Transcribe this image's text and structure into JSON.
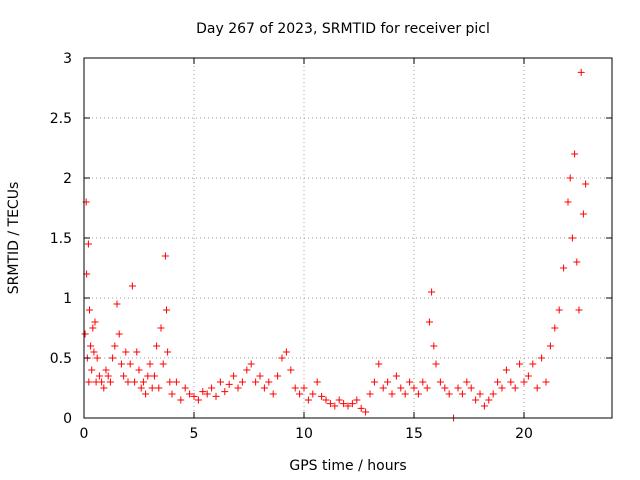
{
  "chart_data": {
    "type": "scatter",
    "title": "Day 267 of 2023, SRMTID for receiver picl",
    "xlabel": "GPS time / hours",
    "ylabel": "SRMTID / TECUs",
    "xlim": [
      0,
      24
    ],
    "ylim": [
      0,
      3
    ],
    "xticks": [
      0,
      5,
      10,
      15,
      20
    ],
    "yticks": [
      0,
      0.5,
      1,
      1.5,
      2,
      2.5,
      3
    ],
    "xtick_labels": [
      "0",
      "5",
      "10",
      "15",
      "20"
    ],
    "ytick_labels": [
      "0",
      "0.5",
      "1",
      "1.5",
      "2",
      "2.5",
      "3"
    ],
    "grid": true,
    "marker": "+",
    "color": "#ff0000",
    "series": [
      {
        "name": "SRMTID",
        "x": [
          0.05,
          0.1,
          0.12,
          0.15,
          0.2,
          0.22,
          0.25,
          0.3,
          0.35,
          0.4,
          0.45,
          0.5,
          0.55,
          0.6,
          0.7,
          0.8,
          0.9,
          1.0,
          1.1,
          1.2,
          1.3,
          1.4,
          1.5,
          1.6,
          1.7,
          1.8,
          1.9,
          2.0,
          2.1,
          2.2,
          2.3,
          2.4,
          2.5,
          2.6,
          2.7,
          2.8,
          2.9,
          3.0,
          3.1,
          3.2,
          3.3,
          3.4,
          3.5,
          3.6,
          3.7,
          3.75,
          3.8,
          3.9,
          4.0,
          4.2,
          4.4,
          4.6,
          4.8,
          5.0,
          5.2,
          5.4,
          5.6,
          5.8,
          6.0,
          6.2,
          6.4,
          6.6,
          6.8,
          7.0,
          7.2,
          7.4,
          7.6,
          7.8,
          8.0,
          8.2,
          8.4,
          8.6,
          8.8,
          9.0,
          9.2,
          9.4,
          9.6,
          9.8,
          10.0,
          10.2,
          10.4,
          10.6,
          10.8,
          11.0,
          11.2,
          11.4,
          11.6,
          11.8,
          12.0,
          12.2,
          12.4,
          12.6,
          12.8,
          13.0,
          13.2,
          13.4,
          13.6,
          13.8,
          14.0,
          14.2,
          14.4,
          14.6,
          14.8,
          15.0,
          15.2,
          15.4,
          15.6,
          15.7,
          15.8,
          15.9,
          16.0,
          16.2,
          16.4,
          16.6,
          16.8,
          17.0,
          17.2,
          17.4,
          17.6,
          17.8,
          18.0,
          18.2,
          18.4,
          18.6,
          18.8,
          19.0,
          19.2,
          19.4,
          19.6,
          19.8,
          20.0,
          20.2,
          20.4,
          20.6,
          20.8,
          21.0,
          21.2,
          21.4,
          21.6,
          21.8,
          22.0,
          22.1,
          22.2,
          22.3,
          22.4,
          22.5,
          22.6,
          22.7,
          22.8
        ],
        "y": [
          0.7,
          1.8,
          1.2,
          0.5,
          1.45,
          0.3,
          0.9,
          0.6,
          0.4,
          0.75,
          0.55,
          0.8,
          0.3,
          0.5,
          0.35,
          0.3,
          0.25,
          0.4,
          0.35,
          0.3,
          0.5,
          0.6,
          0.95,
          0.7,
          0.45,
          0.35,
          0.55,
          0.3,
          0.45,
          1.1,
          0.3,
          0.55,
          0.4,
          0.25,
          0.3,
          0.2,
          0.35,
          0.45,
          0.25,
          0.35,
          0.6,
          0.25,
          0.75,
          0.45,
          1.35,
          0.9,
          0.55,
          0.3,
          0.2,
          0.3,
          0.15,
          0.25,
          0.2,
          0.18,
          0.15,
          0.22,
          0.2,
          0.25,
          0.18,
          0.3,
          0.22,
          0.28,
          0.35,
          0.25,
          0.3,
          0.4,
          0.45,
          0.3,
          0.35,
          0.25,
          0.3,
          0.2,
          0.35,
          0.5,
          0.55,
          0.4,
          0.25,
          0.2,
          0.25,
          0.15,
          0.2,
          0.3,
          0.18,
          0.15,
          0.12,
          0.1,
          0.15,
          0.12,
          0.1,
          0.12,
          0.15,
          0.08,
          0.05,
          0.2,
          0.3,
          0.45,
          0.25,
          0.3,
          0.2,
          0.35,
          0.25,
          0.2,
          0.3,
          0.25,
          0.2,
          0.3,
          0.25,
          0.8,
          1.05,
          0.6,
          0.45,
          0.3,
          0.25,
          0.2,
          0.0,
          0.25,
          0.2,
          0.3,
          0.25,
          0.15,
          0.2,
          0.1,
          0.15,
          0.2,
          0.3,
          0.25,
          0.4,
          0.3,
          0.25,
          0.45,
          0.3,
          0.35,
          0.45,
          0.25,
          0.5,
          0.3,
          0.6,
          0.75,
          0.9,
          1.25,
          1.8,
          2.0,
          1.5,
          2.2,
          1.3,
          0.9,
          2.88,
          1.7,
          1.95
        ]
      }
    ]
  }
}
